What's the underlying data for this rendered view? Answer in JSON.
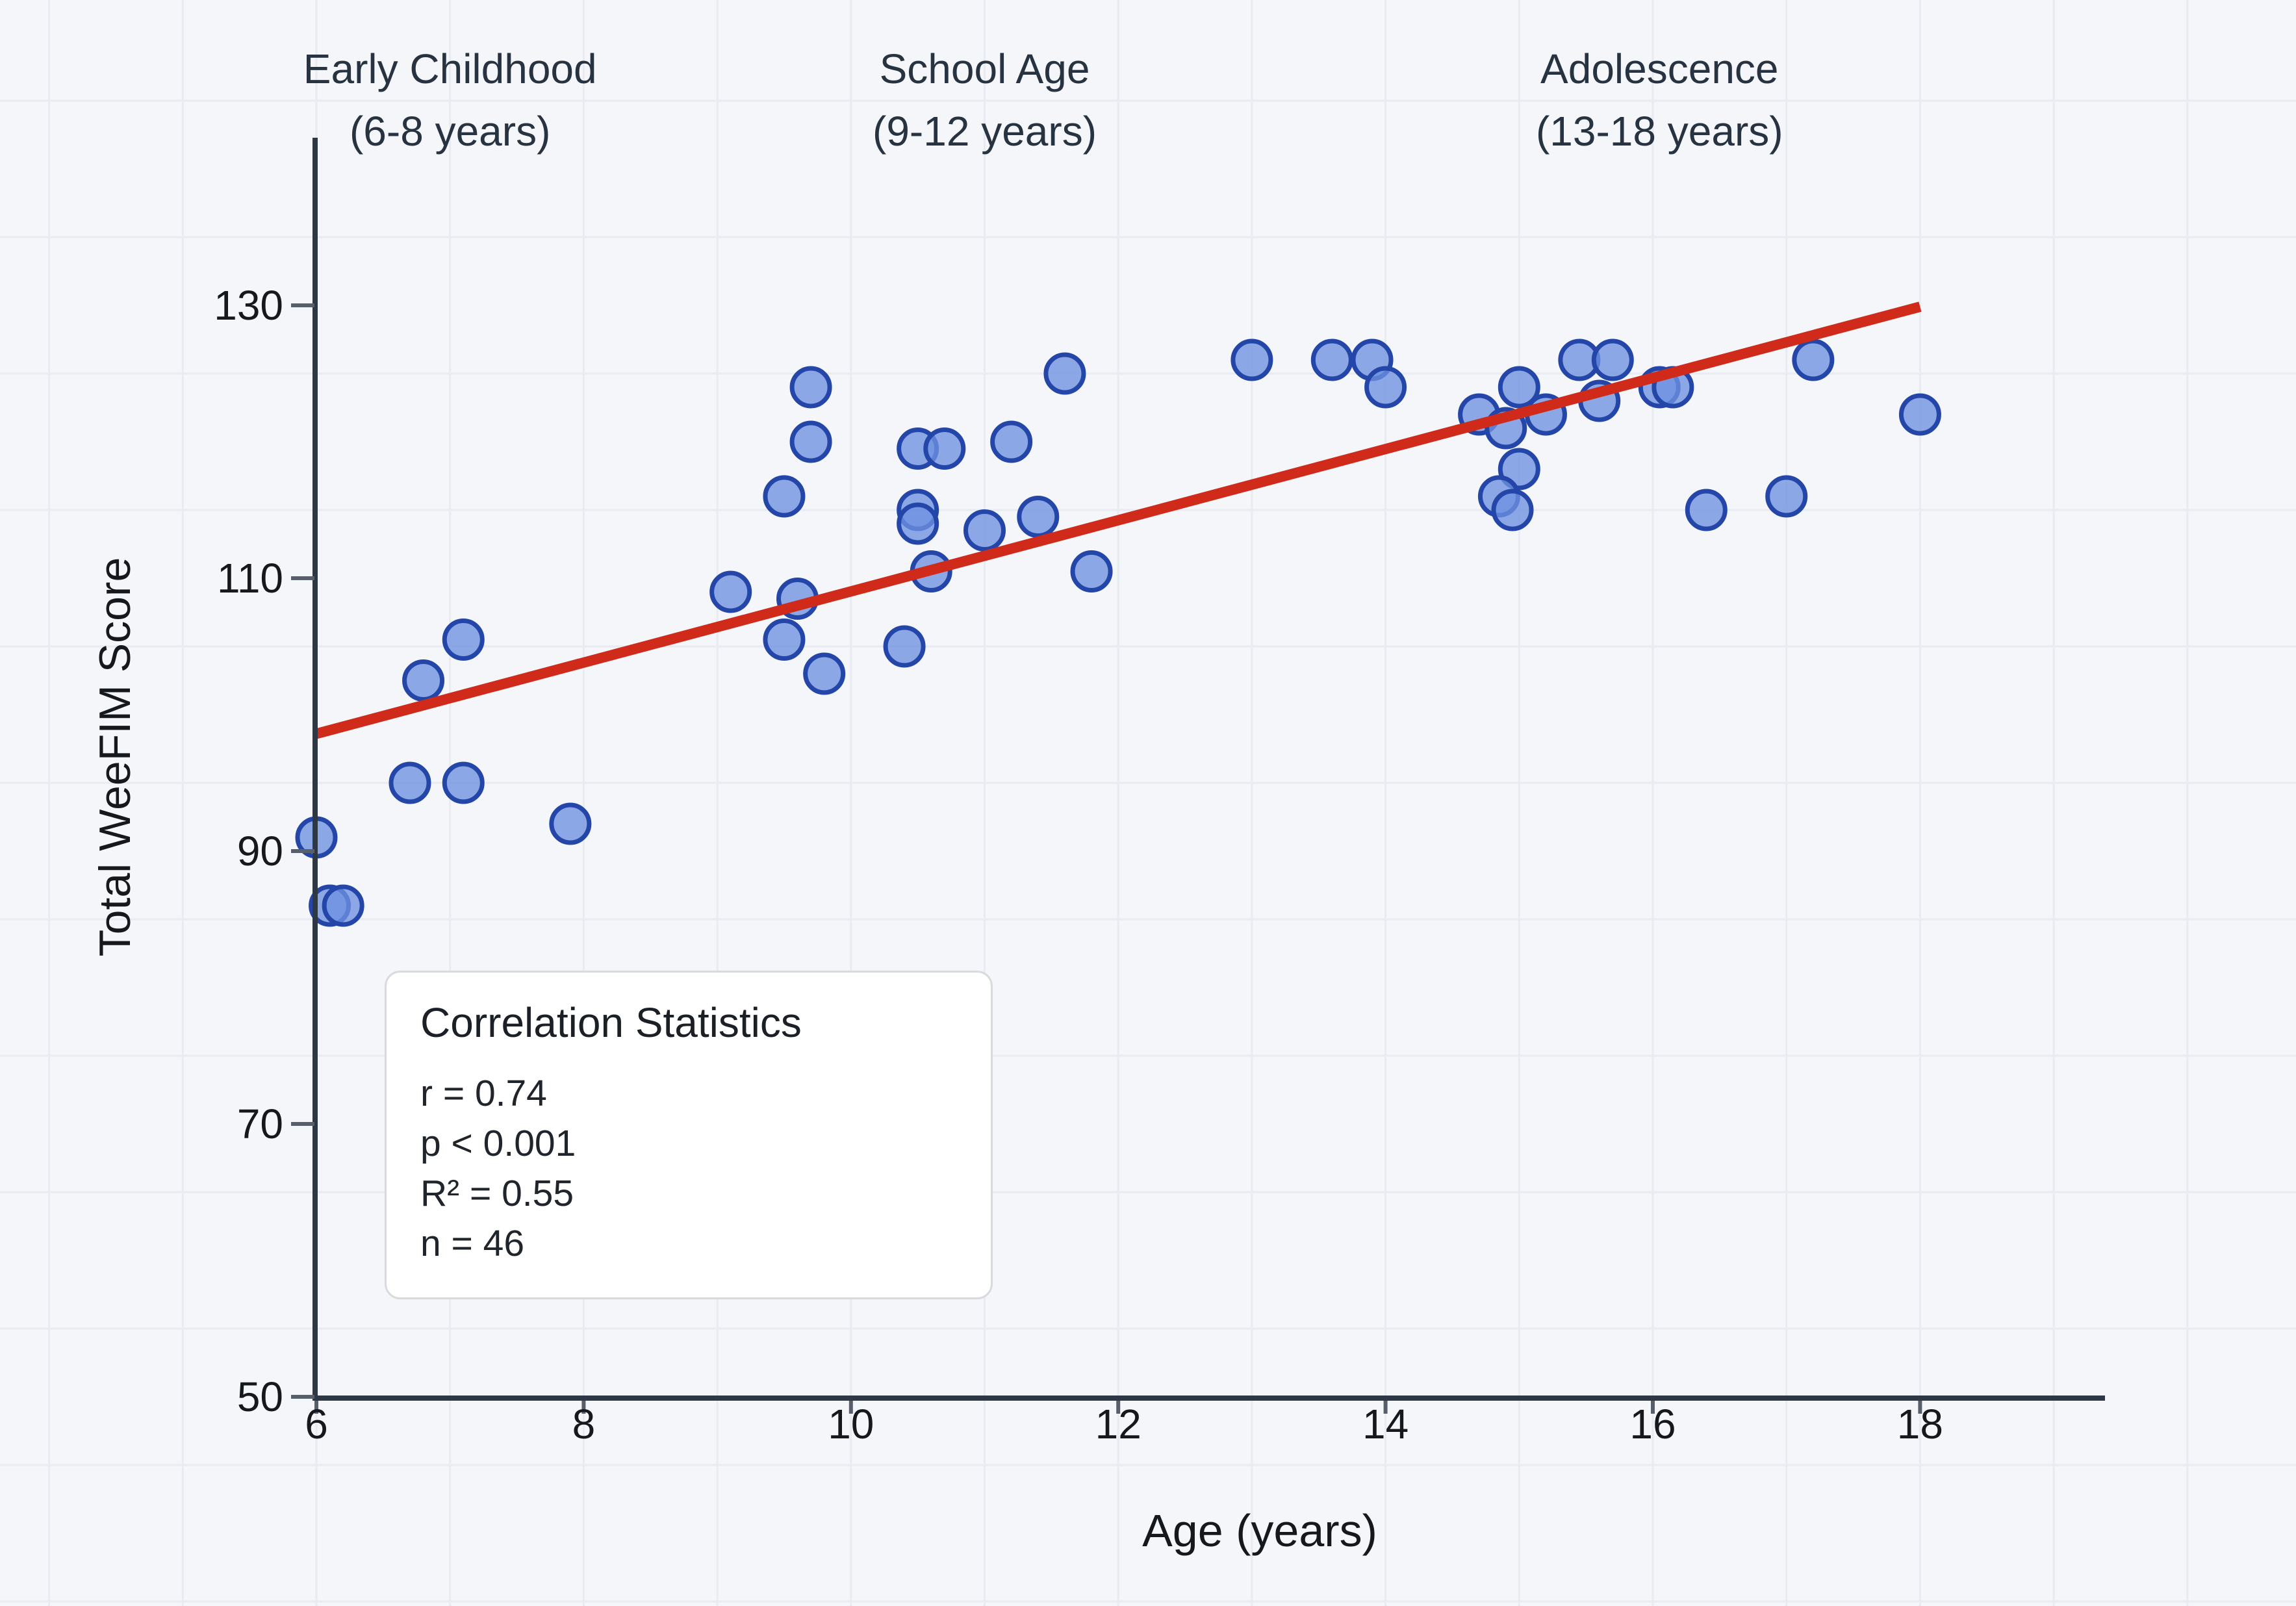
{
  "chart_data": {
    "type": "scatter",
    "xlabel": "Age (years)",
    "ylabel": "Total WeeFIM Score",
    "x_ticks": [
      6,
      8,
      10,
      12,
      14,
      16,
      18
    ],
    "y_ticks": [
      50,
      70,
      90,
      110,
      130
    ],
    "xlim": [
      6,
      19.9
    ],
    "ylim": [
      50,
      142
    ],
    "grid": "on",
    "points": [
      [
        6.0,
        91
      ],
      [
        6.1,
        86
      ],
      [
        6.2,
        86
      ],
      [
        6.7,
        95
      ],
      [
        6.8,
        102.5
      ],
      [
        7.1,
        95
      ],
      [
        7.1,
        105.5
      ],
      [
        7.9,
        92
      ],
      [
        9.1,
        109
      ],
      [
        9.5,
        116
      ],
      [
        9.5,
        105.5
      ],
      [
        9.6,
        108.5
      ],
      [
        9.7,
        124
      ],
      [
        9.7,
        120
      ],
      [
        9.8,
        103
      ],
      [
        10.4,
        105
      ],
      [
        10.5,
        119.5
      ],
      [
        10.7,
        119.5
      ],
      [
        10.5,
        115
      ],
      [
        10.5,
        114
      ],
      [
        10.6,
        110.5
      ],
      [
        11.0,
        113.5
      ],
      [
        11.2,
        120
      ],
      [
        11.4,
        114.5
      ],
      [
        11.6,
        125
      ],
      [
        11.8,
        110.5
      ],
      [
        13.0,
        126
      ],
      [
        13.6,
        126
      ],
      [
        13.9,
        126
      ],
      [
        14.0,
        124
      ],
      [
        14.7,
        122
      ],
      [
        14.9,
        121
      ],
      [
        15.0,
        124
      ],
      [
        15.2,
        122
      ],
      [
        15.0,
        118
      ],
      [
        14.85,
        116
      ],
      [
        14.95,
        115
      ],
      [
        15.45,
        126
      ],
      [
        15.7,
        126
      ],
      [
        15.6,
        123
      ],
      [
        16.05,
        124
      ],
      [
        16.15,
        124
      ],
      [
        16.4,
        115
      ],
      [
        17.0,
        116
      ],
      [
        17.2,
        126
      ],
      [
        18.0,
        122
      ]
    ],
    "trendline": {
      "x_start": 6.0,
      "y_start": 98.6,
      "x_end": 18.0,
      "y_end": 129.9
    }
  },
  "annotations": [
    {
      "label": "Early Childhood",
      "sublabel": "(6-8 years)",
      "age_center": 7.0
    },
    {
      "label": "School Age",
      "sublabel": "(9-12 years)",
      "age_center": 11.0
    },
    {
      "label": "Adolescence",
      "sublabel": "(13-18 years)",
      "age_center": 16.05
    }
  ],
  "stats": {
    "title": "Correlation Statistics",
    "r": "r = 0.74",
    "p": "p < 0.001",
    "r2": "R² = 0.55",
    "n": "n = 46"
  },
  "colors": {
    "background": "#f5f6fa",
    "gridline": "#e8ebf1",
    "axis": "#2e3844",
    "tick_dash": "#565f6a",
    "tick_label": "#15181c",
    "point_fill": "#6e91e0",
    "point_stroke": "#2446a8",
    "trendline": "#cf2a1a",
    "annotation_text": "#273340"
  }
}
